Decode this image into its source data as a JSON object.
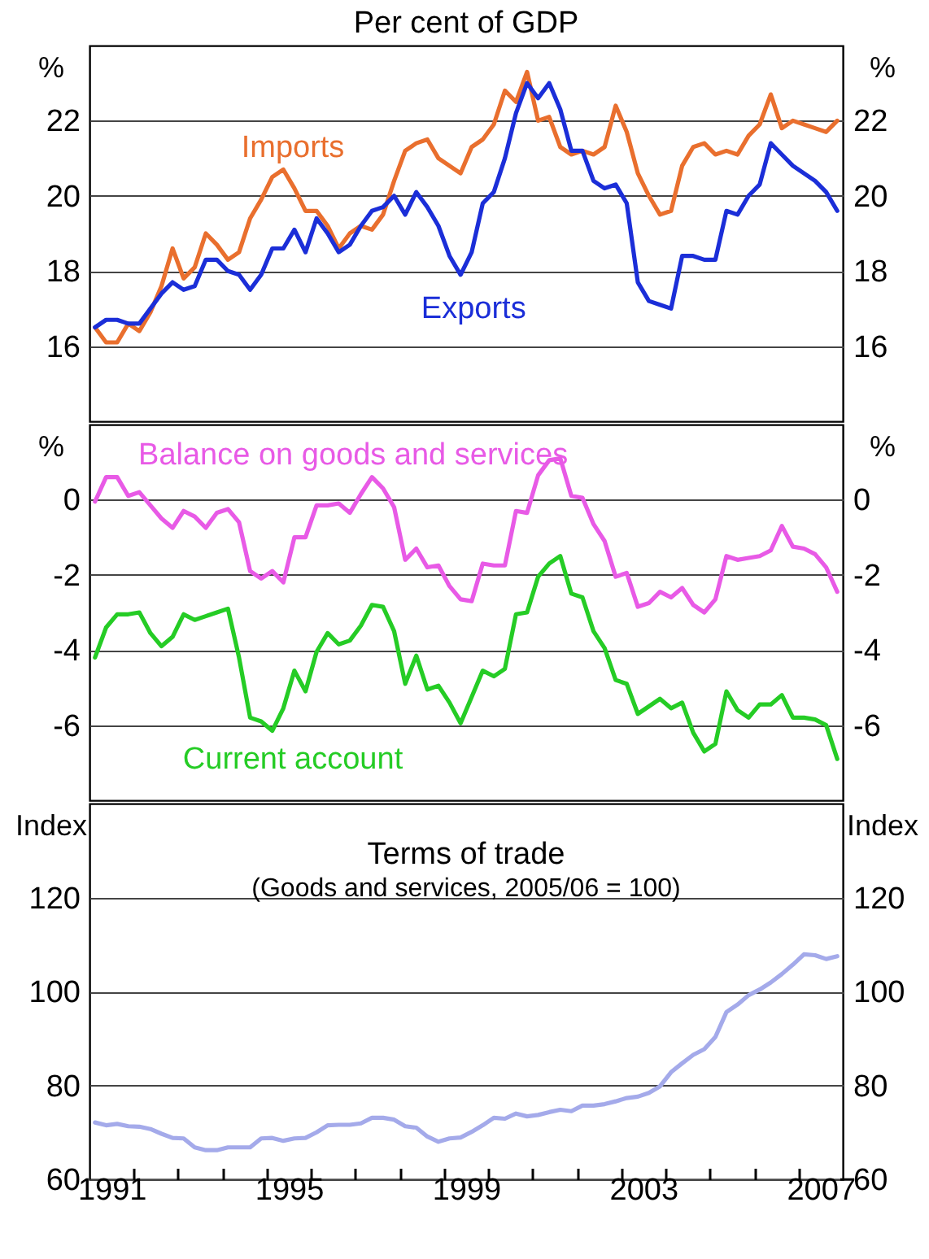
{
  "chart_data": [
    {
      "type": "line",
      "title": "Per cent of GDP",
      "ylabel": "%",
      "y2label": "%",
      "x": [
        1991.125,
        1991.375,
        1991.625,
        1991.875,
        1992.125,
        1992.375,
        1992.625,
        1992.875,
        1993.125,
        1993.375,
        1993.625,
        1993.875,
        1994.125,
        1994.375,
        1994.625,
        1994.875,
        1995.125,
        1995.375,
        1995.625,
        1995.875,
        1996.125,
        1996.375,
        1996.625,
        1996.875,
        1997.125,
        1997.375,
        1997.625,
        1997.875,
        1998.125,
        1998.375,
        1998.625,
        1998.875,
        1999.125,
        1999.375,
        1999.625,
        1999.875,
        2000.125,
        2000.375,
        2000.625,
        2000.875,
        2001.125,
        2001.375,
        2001.625,
        2001.875,
        2002.125,
        2002.375,
        2002.625,
        2002.875,
        2003.125,
        2003.375,
        2003.625,
        2003.875,
        2004.125,
        2004.375,
        2004.625,
        2004.875,
        2005.125,
        2005.375,
        2005.625,
        2005.875,
        2006.125,
        2006.375,
        2006.625,
        2006.875,
        2007.125,
        2007.375,
        2007.625,
        2007.875
      ],
      "series": [
        {
          "name": "Imports",
          "color": "#e96f2e",
          "values": [
            16.5,
            16.1,
            16.1,
            16.6,
            16.4,
            16.9,
            17.6,
            18.6,
            17.8,
            18.1,
            19.0,
            18.7,
            18.3,
            18.5,
            19.4,
            19.9,
            20.5,
            20.7,
            20.2,
            19.6,
            19.6,
            19.2,
            18.6,
            19.0,
            19.2,
            19.1,
            19.5,
            20.4,
            21.2,
            21.4,
            21.5,
            21.0,
            20.8,
            20.6,
            21.3,
            21.5,
            21.9,
            22.8,
            22.5,
            23.3,
            22.0,
            22.1,
            21.3,
            21.1,
            21.2,
            21.1,
            21.3,
            22.4,
            21.7,
            20.6,
            20.0,
            19.5,
            19.6,
            20.8,
            21.3,
            21.4,
            21.1,
            21.2,
            21.1,
            21.6,
            21.9,
            22.7,
            21.8,
            22.0,
            21.9,
            21.8,
            21.7,
            22.0
          ]
        },
        {
          "name": "Exports",
          "color": "#1b2ed8",
          "values": [
            16.5,
            16.7,
            16.7,
            16.6,
            16.6,
            17.0,
            17.4,
            17.7,
            17.5,
            17.6,
            18.3,
            18.3,
            18.0,
            17.9,
            17.5,
            17.9,
            18.6,
            18.6,
            19.1,
            18.5,
            19.4,
            19.0,
            18.5,
            18.7,
            19.2,
            19.6,
            19.7,
            20.0,
            19.5,
            20.1,
            19.7,
            19.2,
            18.4,
            17.9,
            18.5,
            19.8,
            20.1,
            21.0,
            22.2,
            23.0,
            22.6,
            23.0,
            22.3,
            21.2,
            21.2,
            20.4,
            20.2,
            20.3,
            19.8,
            17.7,
            17.2,
            17.1,
            17.0,
            18.4,
            18.4,
            18.3,
            18.3,
            19.6,
            19.5,
            20.0,
            20.3,
            21.4,
            21.1,
            20.8,
            20.6,
            20.4,
            20.1,
            19.6
          ]
        }
      ],
      "xlim": [
        1991,
        2008
      ],
      "ylim": [
        14,
        24
      ],
      "yticks": [
        16,
        18,
        20,
        22
      ],
      "y2lim": [
        14,
        24
      ],
      "y2ticks": [
        16,
        18,
        20,
        22
      ],
      "grid": "y",
      "tick_labels": "y"
    },
    {
      "type": "line",
      "ylabel": "%",
      "y2label": "%",
      "x": [
        1991.125,
        1991.375,
        1991.625,
        1991.875,
        1992.125,
        1992.375,
        1992.625,
        1992.875,
        1993.125,
        1993.375,
        1993.625,
        1993.875,
        1994.125,
        1994.375,
        1994.625,
        1994.875,
        1995.125,
        1995.375,
        1995.625,
        1995.875,
        1996.125,
        1996.375,
        1996.625,
        1996.875,
        1997.125,
        1997.375,
        1997.625,
        1997.875,
        1998.125,
        1998.375,
        1998.625,
        1998.875,
        1999.125,
        1999.375,
        1999.625,
        1999.875,
        2000.125,
        2000.375,
        2000.625,
        2000.875,
        2001.125,
        2001.375,
        2001.625,
        2001.875,
        2002.125,
        2002.375,
        2002.625,
        2002.875,
        2003.125,
        2003.375,
        2003.625,
        2003.875,
        2004.125,
        2004.375,
        2004.625,
        2004.875,
        2005.125,
        2005.375,
        2005.625,
        2005.875,
        2006.125,
        2006.375,
        2006.625,
        2006.875,
        2007.125,
        2007.375,
        2007.625,
        2007.875
      ],
      "series": [
        {
          "name": "Balance on goods and services",
          "color": "#e85ae6",
          "values": [
            -0.05,
            0.6,
            0.6,
            0.1,
            0.2,
            -0.15,
            -0.5,
            -0.75,
            -0.3,
            -0.45,
            -0.75,
            -0.35,
            -0.25,
            -0.6,
            -1.9,
            -2.1,
            -1.9,
            -2.2,
            -1.0,
            -1.0,
            -0.15,
            -0.15,
            -0.1,
            -0.35,
            0.15,
            0.6,
            0.3,
            -0.2,
            -1.6,
            -1.3,
            -1.8,
            -1.75,
            -2.3,
            -2.65,
            -2.7,
            -1.7,
            -1.75,
            -1.75,
            -0.3,
            -0.35,
            0.65,
            1.05,
            1.1,
            0.1,
            0.05,
            -0.65,
            -1.1,
            -2.05,
            -1.95,
            -2.85,
            -2.75,
            -2.45,
            -2.6,
            -2.35,
            -2.8,
            -3.0,
            -2.65,
            -1.5,
            -1.6,
            -1.55,
            -1.5,
            -1.35,
            -0.7,
            -1.25,
            -1.3,
            -1.45,
            -1.8,
            -2.45
          ]
        },
        {
          "name": "Current account",
          "color": "#25cc25",
          "values": [
            -4.2,
            -3.4,
            -3.05,
            -3.05,
            -3.0,
            -3.55,
            -3.9,
            -3.65,
            -3.05,
            -3.2,
            -3.1,
            -3.0,
            -2.9,
            -4.2,
            -5.8,
            -5.9,
            -6.15,
            -5.55,
            -4.55,
            -5.1,
            -4.05,
            -3.55,
            -3.85,
            -3.75,
            -3.35,
            -2.8,
            -2.85,
            -3.5,
            -4.9,
            -4.15,
            -5.05,
            -4.95,
            -5.4,
            -5.95,
            -5.25,
            -4.55,
            -4.7,
            -4.5,
            -3.05,
            -3.0,
            -2.05,
            -1.7,
            -1.5,
            -2.5,
            -2.6,
            -3.5,
            -3.95,
            -4.8,
            -4.9,
            -5.7,
            -5.5,
            -5.3,
            -5.55,
            -5.4,
            -6.2,
            -6.7,
            -6.5,
            -5.1,
            -5.6,
            -5.8,
            -5.45,
            -5.45,
            -5.2,
            -5.8,
            -5.8,
            -5.85,
            -6.0,
            -6.9
          ]
        }
      ],
      "xlim": [
        1991,
        2008
      ],
      "ylim": [
        -8,
        2
      ],
      "yticks": [
        -6,
        -4,
        -2,
        0
      ],
      "y2lim": [
        -8,
        2
      ],
      "y2ticks": [
        -6,
        -4,
        -2,
        0
      ],
      "grid": "y",
      "tick_labels": "y"
    },
    {
      "type": "line",
      "title": "Terms of trade",
      "subtitle": "(Goods and services, 2005/06 = 100)",
      "ylabel": "Index",
      "y2label": "Index",
      "x": [
        1991.125,
        1991.375,
        1991.625,
        1991.875,
        1992.125,
        1992.375,
        1992.625,
        1992.875,
        1993.125,
        1993.375,
        1993.625,
        1993.875,
        1994.125,
        1994.375,
        1994.625,
        1994.875,
        1995.125,
        1995.375,
        1995.625,
        1995.875,
        1996.125,
        1996.375,
        1996.625,
        1996.875,
        1997.125,
        1997.375,
        1997.625,
        1997.875,
        1998.125,
        1998.375,
        1998.625,
        1998.875,
        1999.125,
        1999.375,
        1999.625,
        1999.875,
        2000.125,
        2000.375,
        2000.625,
        2000.875,
        2001.125,
        2001.375,
        2001.625,
        2001.875,
        2002.125,
        2002.375,
        2002.625,
        2002.875,
        2003.125,
        2003.375,
        2003.625,
        2003.875,
        2004.125,
        2004.375,
        2004.625,
        2004.875,
        2005.125,
        2005.375,
        2005.625,
        2005.875,
        2006.125,
        2006.375,
        2006.625,
        2006.875,
        2007.125,
        2007.375,
        2007.625,
        2007.875
      ],
      "series": [
        {
          "color": "#a4aaea",
          "values": [
            72.1,
            71.5,
            71.8,
            71.3,
            71.2,
            70.7,
            69.7,
            68.8,
            68.7,
            66.8,
            66.2,
            66.2,
            66.8,
            66.8,
            66.8,
            68.7,
            68.8,
            68.2,
            68.7,
            68.8,
            70.0,
            71.5,
            71.6,
            71.6,
            71.9,
            73.1,
            73.1,
            72.7,
            71.3,
            71.0,
            69.1,
            68.0,
            68.7,
            68.9,
            70.1,
            71.5,
            73.1,
            72.9,
            74.0,
            73.4,
            73.7,
            74.3,
            74.8,
            74.5,
            75.7,
            75.7,
            76.0,
            76.6,
            77.3,
            77.6,
            78.4,
            79.8,
            82.8,
            84.7,
            86.5,
            87.7,
            90.3,
            95.6,
            97.2,
            99.2,
            100.4,
            101.9,
            103.7,
            105.7,
            107.9,
            107.7,
            106.9,
            107.5
          ]
        }
      ],
      "xlim": [
        1991,
        2008
      ],
      "xticks": [
        {
          "value": 1991.5,
          "label": "1991"
        },
        {
          "value": 1992,
          "label": null
        },
        {
          "value": 1993,
          "label": null
        },
        {
          "value": 1994,
          "label": null
        },
        {
          "value": 1995,
          "label": null
        },
        {
          "value": 1995.5,
          "label": "1995"
        },
        {
          "value": 1996,
          "label": null
        },
        {
          "value": 1997,
          "label": null
        },
        {
          "value": 1998,
          "label": null
        },
        {
          "value": 1999,
          "label": null
        },
        {
          "value": 1999.5,
          "label": "1999"
        },
        {
          "value": 2000,
          "label": null
        },
        {
          "value": 2001,
          "label": null
        },
        {
          "value": 2002,
          "label": null
        },
        {
          "value": 2003,
          "label": null
        },
        {
          "value": 2003.5,
          "label": "2003"
        },
        {
          "value": 2004,
          "label": null
        },
        {
          "value": 2005,
          "label": null
        },
        {
          "value": 2006,
          "label": null
        },
        {
          "value": 2007,
          "label": null
        },
        {
          "value": 2007.5,
          "label": "2007"
        }
      ],
      "ylim": [
        60,
        140
      ],
      "yticks": [
        60,
        80,
        100,
        120
      ],
      "y2lim": [
        60,
        140
      ],
      "y2ticks": [
        60,
        80,
        100,
        120
      ],
      "grid": "y"
    }
  ]
}
